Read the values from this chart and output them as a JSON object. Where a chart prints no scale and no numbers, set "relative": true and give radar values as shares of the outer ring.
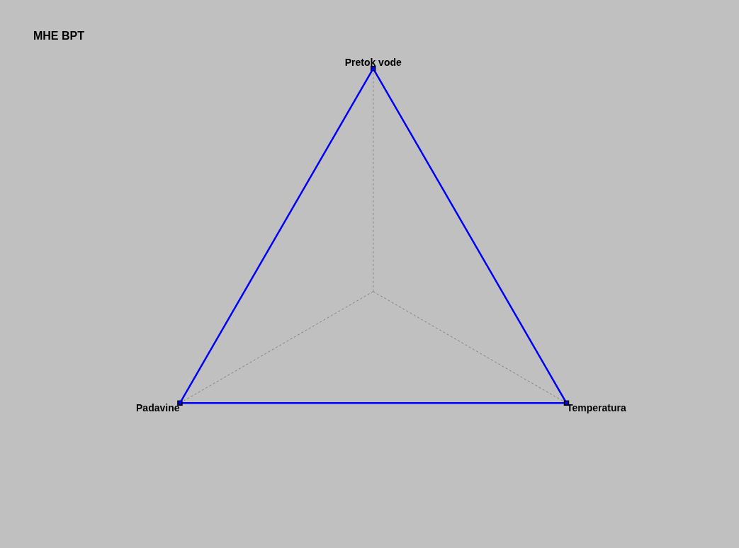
{
  "chart_data": {
    "type": "radar",
    "title": "MHE BPT",
    "relative": true,
    "categories": [
      "Pretok vode",
      "Temperatura",
      "Padavine"
    ],
    "series": [
      {
        "color": "#0000ff",
        "values": [
          1,
          1,
          1
        ]
      }
    ],
    "marker": "square",
    "grid": "x"
  }
}
